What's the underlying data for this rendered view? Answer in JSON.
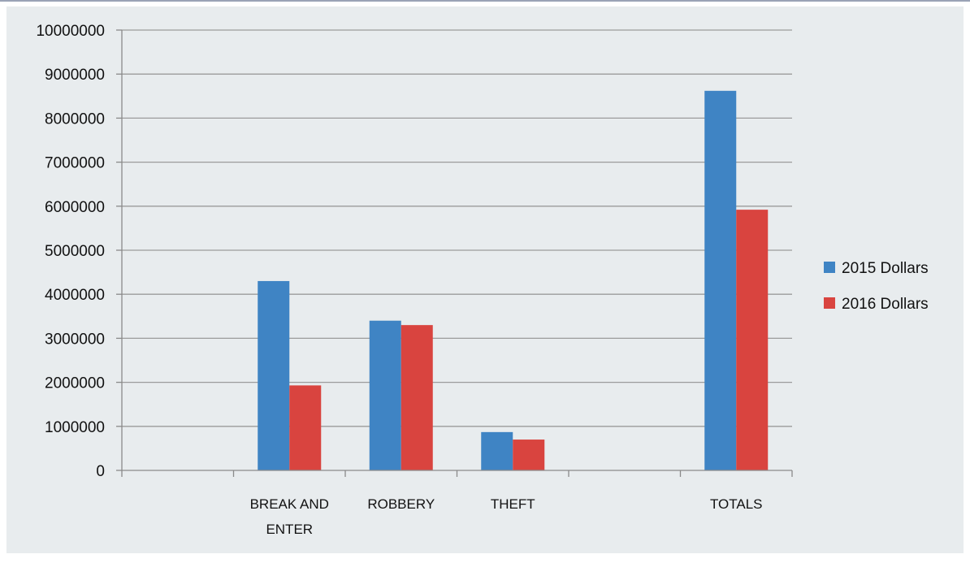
{
  "chart_data": {
    "type": "bar",
    "categories": [
      [
        "",
        ""
      ],
      [
        "BREAK AND",
        "ENTER"
      ],
      [
        "ROBBERY",
        ""
      ],
      [
        "THEFT",
        ""
      ],
      [
        "",
        ""
      ],
      [
        "TOTALS",
        ""
      ]
    ],
    "series": [
      {
        "name": "2015 Dollars",
        "color": "#3f84c4",
        "values": [
          null,
          4300000,
          3400000,
          870000,
          null,
          8620000
        ]
      },
      {
        "name": "2016 Dollars",
        "color": "#d9443f",
        "values": [
          null,
          1930000,
          3300000,
          700000,
          null,
          5920000
        ]
      }
    ],
    "title": "",
    "xlabel": "",
    "ylabel": "",
    "ylim": [
      0,
      10000000
    ],
    "yticks": [
      "0",
      "1000000",
      "2000000",
      "3000000",
      "4000000",
      "5000000",
      "6000000",
      "7000000",
      "8000000",
      "9000000",
      "10000000"
    ],
    "grid": true,
    "legend_position": "right"
  }
}
